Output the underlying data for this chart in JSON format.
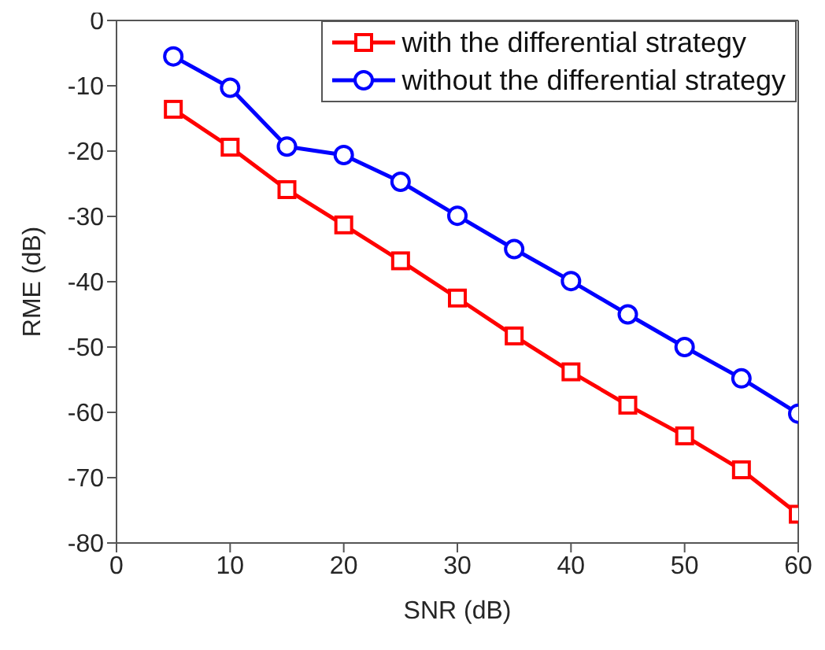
{
  "chart_data": {
    "type": "line",
    "xlabel": "SNR (dB)",
    "ylabel": "RME (dB)",
    "x": [
      5,
      10,
      15,
      20,
      25,
      30,
      35,
      40,
      45,
      50,
      55,
      60
    ],
    "series": [
      {
        "name": "with the differential strategy",
        "color": "#ff0000",
        "marker": "square",
        "values": [
          -13.6,
          -19.4,
          -25.9,
          -31.3,
          -36.8,
          -42.5,
          -48.3,
          -53.8,
          -58.9,
          -63.6,
          -68.8,
          -75.6
        ]
      },
      {
        "name": "without the differential strategy",
        "color": "#0000ff",
        "marker": "circle",
        "values": [
          -5.5,
          -10.3,
          -19.3,
          -20.6,
          -24.7,
          -29.9,
          -35.0,
          -39.9,
          -45.0,
          -50.0,
          -54.8,
          -60.2
        ]
      }
    ],
    "xlim": [
      0,
      60
    ],
    "xticks": [
      0,
      10,
      20,
      30,
      40,
      50,
      60
    ],
    "ylim": [
      -80,
      0
    ],
    "yticks": [
      -80,
      -70,
      -60,
      -50,
      -40,
      -30,
      -20,
      -10,
      0
    ],
    "grid": false,
    "legend": "top right",
    "line_style": "solid"
  }
}
